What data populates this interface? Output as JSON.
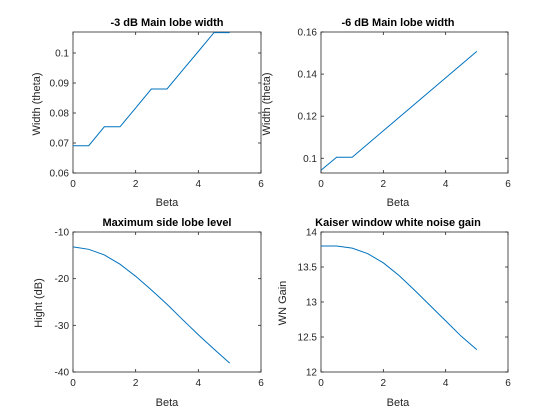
{
  "chart_data": [
    {
      "type": "line",
      "title": "-3 dB Main lobe width",
      "xlabel": "Beta",
      "ylabel": "Width (theta)",
      "xlim": [
        0,
        6
      ],
      "ylim": [
        0.06,
        0.107
      ],
      "xticks": [
        "0",
        "2",
        "4",
        "6"
      ],
      "yticks": [
        "0.06",
        "0.07",
        "0.08",
        "0.09",
        "0.1"
      ],
      "ytick_values": [
        0.06,
        0.07,
        0.08,
        0.09,
        0.1
      ],
      "grid": false,
      "color": "#0072BD",
      "x": [
        0,
        0.5,
        1,
        1.5,
        2,
        2.5,
        3,
        3.5,
        4,
        4.5,
        5
      ],
      "y": [
        0.0691,
        0.0691,
        0.0754,
        0.0754,
        0.0817,
        0.088,
        0.088,
        0.0943,
        0.1005,
        0.1068,
        0.1068
      ]
    },
    {
      "type": "line",
      "title": "-6 dB Main lobe width",
      "xlabel": "Beta",
      "ylabel": "Width (theta)",
      "xlim": [
        0,
        6
      ],
      "ylim": [
        0.093,
        0.16
      ],
      "xticks": [
        "0",
        "2",
        "4",
        "6"
      ],
      "yticks": [
        "0.1",
        "0.12",
        "0.14",
        "0.16"
      ],
      "ytick_values": [
        0.1,
        0.12,
        0.14,
        0.16
      ],
      "grid": false,
      "color": "#0072BD",
      "x": [
        0,
        0.5,
        1,
        5
      ],
      "y": [
        0.0943,
        0.1005,
        0.1005,
        0.1508
      ]
    },
    {
      "type": "line",
      "title": "Maximum side lobe level",
      "xlabel": "Beta",
      "ylabel": "Hight (dB)",
      "xlim": [
        0,
        6
      ],
      "ylim": [
        -40,
        -10
      ],
      "xticks": [
        "0",
        "2",
        "4",
        "6"
      ],
      "yticks": [
        "-40",
        "-30",
        "-20",
        "-10"
      ],
      "ytick_values": [
        -40,
        -30,
        -20,
        -10
      ],
      "grid": false,
      "color": "#0072BD",
      "x": [
        0,
        0.5,
        1,
        1.5,
        2,
        2.5,
        3,
        3.5,
        4,
        4.5,
        5
      ],
      "y": [
        -13.2,
        -13.7,
        -14.9,
        -16.9,
        -19.5,
        -22.4,
        -25.5,
        -28.8,
        -32.0,
        -35.1,
        -38.1
      ]
    },
    {
      "type": "line",
      "title": "Kaiser window white noise gain",
      "xlabel": "Beta",
      "ylabel": "WN Gain",
      "xlim": [
        0,
        6
      ],
      "ylim": [
        12,
        14
      ],
      "xticks": [
        "0",
        "2",
        "4",
        "6"
      ],
      "yticks": [
        "12",
        "12.5",
        "13",
        "13.5",
        "14"
      ],
      "ytick_values": [
        12,
        12.5,
        13,
        13.5,
        14
      ],
      "grid": false,
      "color": "#0072BD",
      "x": [
        0,
        0.5,
        1,
        1.5,
        2,
        2.5,
        3,
        3.5,
        4,
        4.5,
        5
      ],
      "y": [
        13.8,
        13.8,
        13.77,
        13.69,
        13.56,
        13.38,
        13.17,
        12.95,
        12.73,
        12.51,
        12.32
      ]
    }
  ]
}
